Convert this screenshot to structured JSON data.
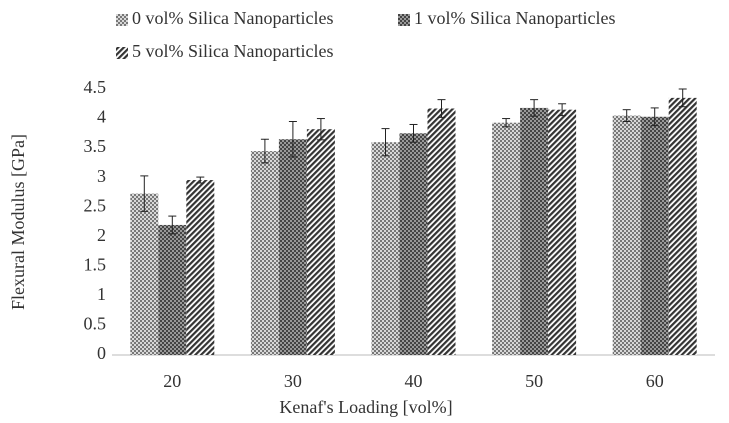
{
  "chart_data": {
    "type": "bar",
    "x_label": "Kenaf's Loading [vol%]",
    "y_label": "Flexural Modulus [GPa]",
    "categories": [
      "20",
      "30",
      "40",
      "50",
      "60"
    ],
    "series": [
      {
        "name": "0 vol% Silica Nanoparticles",
        "color": "#777777",
        "values": [
          2.73,
          3.45,
          3.6,
          3.93,
          4.05
        ],
        "errors": [
          0.3,
          0.2,
          0.23,
          0.07,
          0.1
        ]
      },
      {
        "name": "1 vol% Silica Nanoparticles",
        "color": "#444444",
        "values": [
          2.2,
          3.65,
          3.75,
          4.18,
          4.03
        ],
        "errors": [
          0.15,
          0.3,
          0.15,
          0.14,
          0.15
        ]
      },
      {
        "name": "5 vol% Silica Nanoparticles",
        "color": "#333333",
        "values": [
          2.96,
          3.82,
          4.17,
          4.15,
          4.35
        ],
        "errors": [
          0.05,
          0.18,
          0.15,
          0.1,
          0.15
        ]
      }
    ],
    "ylim": [
      0,
      4.5
    ],
    "yticks": [
      0,
      0.5,
      1,
      1.5,
      2,
      2.5,
      3,
      3.5,
      4,
      4.5
    ],
    "grid": false,
    "legend": "top"
  }
}
